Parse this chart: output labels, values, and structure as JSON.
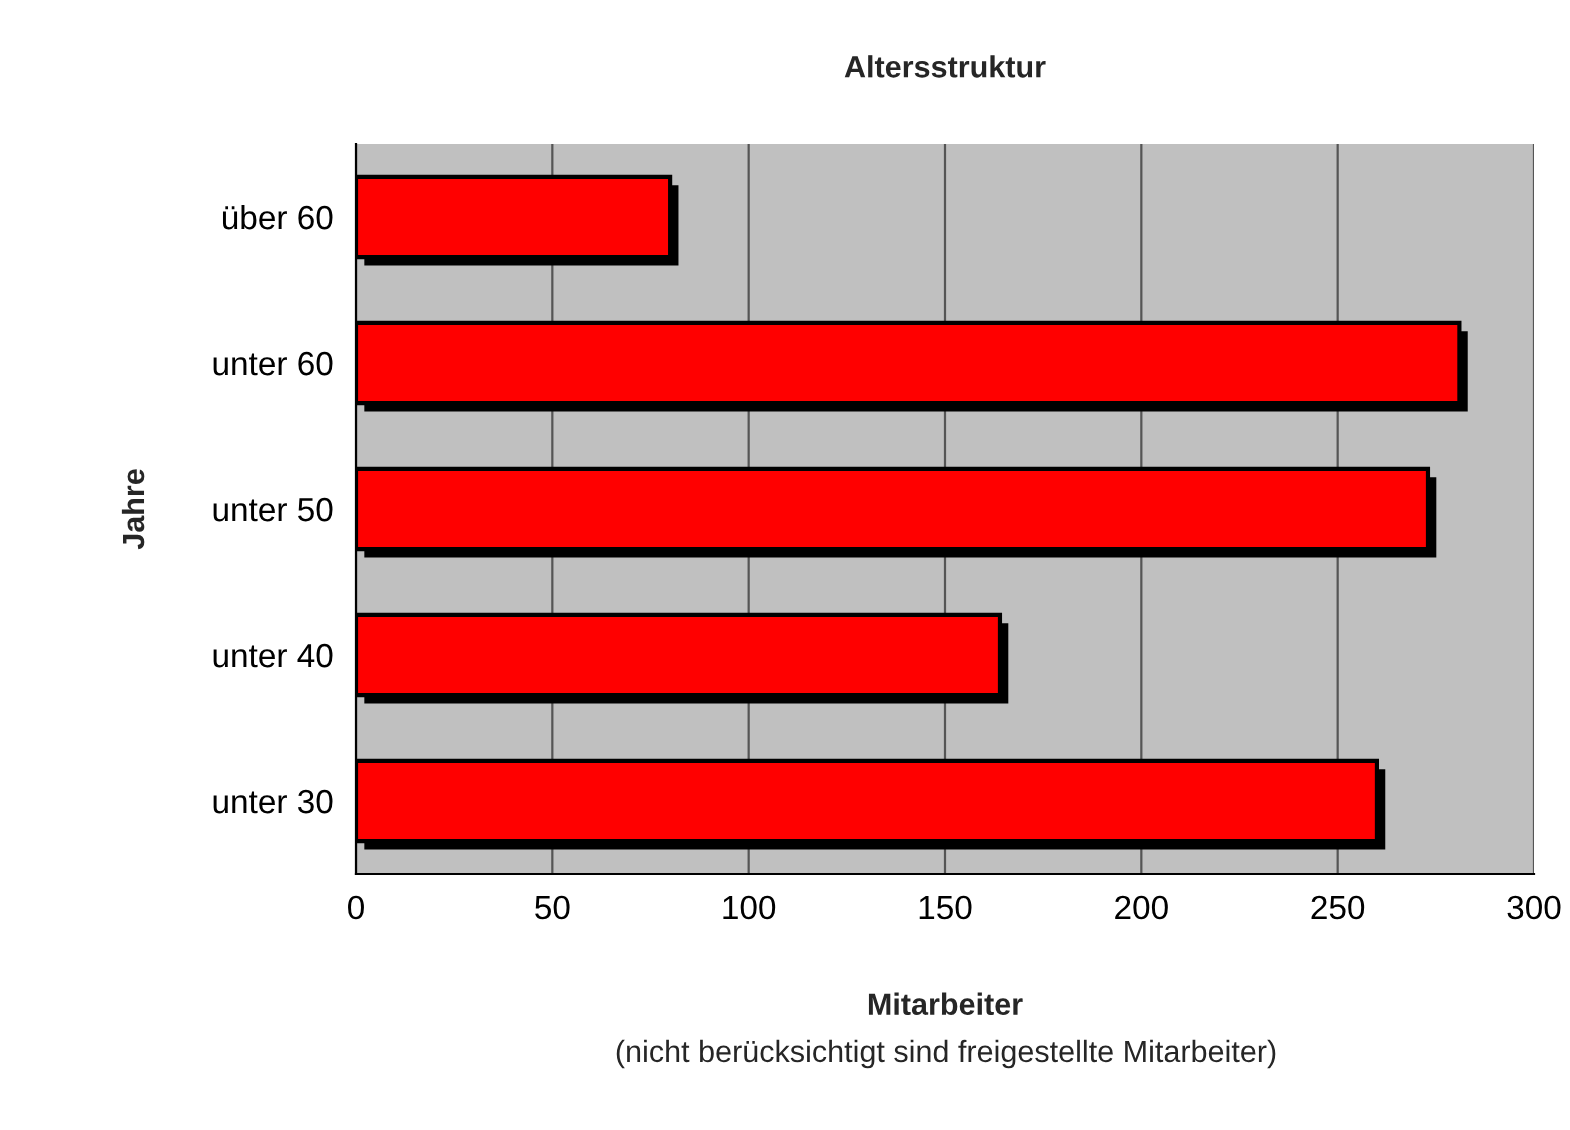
{
  "chart_data": {
    "type": "bar",
    "orientation": "horizontal",
    "title": "Altersstruktur",
    "xlabel": "Mitarbeiter",
    "ylabel": "Jahre",
    "categories": [
      "über 60",
      "unter 60",
      "unter 50",
      "unter 40",
      "unter 30"
    ],
    "values": [
      80,
      281,
      273,
      164,
      260
    ],
    "color": "#ff0000",
    "xlim": [
      0,
      300
    ],
    "xticks": [
      0,
      50,
      100,
      150,
      200,
      250,
      300
    ],
    "grid": "x",
    "annotations": [
      "(nicht berücksichtigt sind freigestellte Mitarbeiter)"
    ]
  }
}
